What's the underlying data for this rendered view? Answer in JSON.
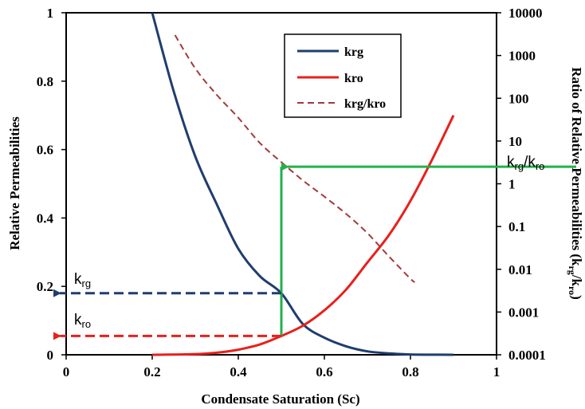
{
  "chart_data": {
    "type": "line",
    "xlabel": "Condensate Saturation (Sc)",
    "ylabel": "Relative Permeabilities",
    "y2label": "Ratio of Relative Permeabilities (k",
    "y2label_sub1": "rg",
    "y2label_mid": "/k",
    "y2label_sub2": "ro",
    "y2label_end": ")",
    "xlim": [
      0,
      1
    ],
    "ylim": [
      0,
      1
    ],
    "y2lim": [
      0.0001,
      10000
    ],
    "y2scale": "log",
    "xticks": [
      "0",
      "0.2",
      "0.4",
      "0.6",
      "0.8",
      "1"
    ],
    "yticks": [
      "0",
      "0.2",
      "0.4",
      "0.6",
      "0.8",
      "1"
    ],
    "y2ticks": [
      "0.0001",
      "0.001",
      "0.01",
      "0.1",
      "1",
      "10",
      "100",
      "1000",
      "10000"
    ],
    "legend_position": "top-center",
    "series": [
      {
        "name": "krg",
        "color": "#1F3D6E",
        "style": "solid",
        "axis": "left",
        "x": [
          0.2,
          0.25,
          0.3,
          0.35,
          0.4,
          0.45,
          0.5,
          0.55,
          0.6,
          0.65,
          0.7,
          0.75,
          0.8,
          0.85,
          0.9
        ],
        "y": [
          1.0,
          0.77,
          0.58,
          0.44,
          0.31,
          0.23,
          0.18,
          0.09,
          0.05,
          0.025,
          0.01,
          0.004,
          0.001,
          0.0003,
          0.0
        ]
      },
      {
        "name": "kro",
        "color": "#E8201C",
        "style": "solid",
        "axis": "left",
        "x": [
          0.2,
          0.3,
          0.35,
          0.4,
          0.45,
          0.5,
          0.55,
          0.6,
          0.65,
          0.7,
          0.75,
          0.8,
          0.85,
          0.9
        ],
        "y": [
          0.0,
          0.002,
          0.006,
          0.015,
          0.03,
          0.055,
          0.085,
          0.13,
          0.19,
          0.27,
          0.35,
          0.45,
          0.57,
          0.7
        ]
      },
      {
        "name": "krg/kro",
        "color": "#A23A3A",
        "style": "dashed",
        "axis": "right",
        "x": [
          0.253,
          0.3,
          0.35,
          0.4,
          0.45,
          0.5,
          0.55,
          0.6,
          0.65,
          0.7,
          0.75,
          0.8,
          0.81
        ],
        "y": [
          3000,
          500,
          120,
          35,
          9,
          3.2,
          1.2,
          0.5,
          0.2,
          0.07,
          0.02,
          0.006,
          0.005
        ]
      }
    ],
    "annotations": {
      "krg_main": "k",
      "krg_sub": "rg",
      "kro_main": "k",
      "kro_sub": "ro",
      "ratio_main1": "k",
      "ratio_sub1": "rg",
      "ratio_mid": "/k",
      "ratio_sub2": "ro",
      "guide_x": 0.5,
      "guide_krg": 0.18,
      "guide_kro": 0.055,
      "guide_ratio": 3.2,
      "guide_ratio_line": 2.5,
      "green": "#22B04A",
      "blue": "#1F3D6E",
      "red": "#E8201C"
    }
  }
}
